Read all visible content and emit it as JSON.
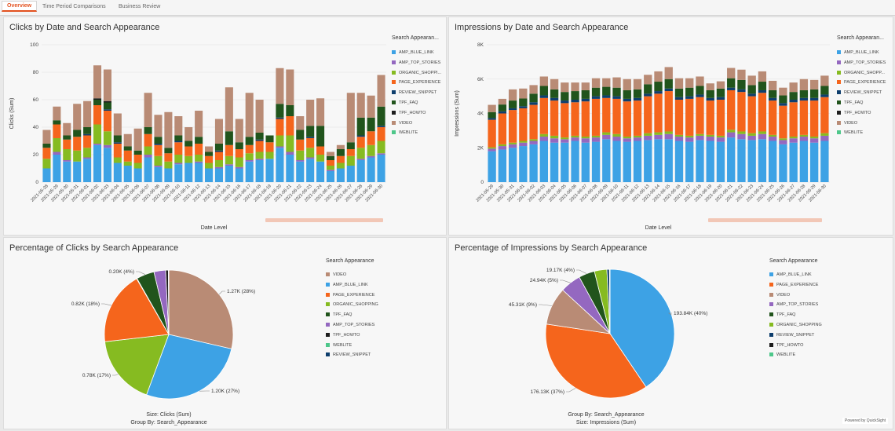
{
  "tabs": [
    "Overview",
    "Time Period Comparisons",
    "Business Review"
  ],
  "colors": {
    "AMP_BLUE_LINK": "#3da2e5",
    "AMP_TOP_STORIES": "#9468c0",
    "ORGANIC_SHOPPING": "#86bb21",
    "PAGE_EXPERIENCE": "#f5651c",
    "REVIEW_SNIPPET": "#0e3e6d",
    "TPF_FAQ": "#21541c",
    "TPF_HOWTO": "#1d1d1d",
    "VIDEO": "#b98b75",
    "WEBLITE": "#4ec78a"
  },
  "clicks_chart": {
    "title": "Clicks by Date and Search Appearance",
    "legend_title": "Search Appearan...",
    "legend": [
      "AMP_BLUE_LINK",
      "AMP_TOP_STORIES",
      "ORGANIC_SHOPPI...",
      "PAGE_EXPERIENCE",
      "REVIEW_SNIPPET",
      "TPF_FAQ",
      "TPF_HOWTO",
      "VIDEO",
      "WEBLITE"
    ]
  },
  "impr_chart": {
    "title": "Impressions by Date and Search Appearance",
    "legend_title": "Search Appearan...",
    "legend": [
      "AMP_BLUE_LINK",
      "AMP_TOP_STORIES",
      "ORGANIC_SHOPP...",
      "PAGE_EXPERIENCE",
      "REVIEW_SNIPPET",
      "TPF_FAQ",
      "TPF_HOWTO",
      "VIDEO",
      "WEBLITE"
    ]
  },
  "pie1": {
    "title": "Percentage of Clicks by Search Appearance",
    "legend_title": "Search Appearance",
    "legend": [
      "VIDEO",
      "AMP_BLUE_LINK",
      "PAGE_EXPERIENCE",
      "ORGANIC_SHOPPING",
      "TPF_FAQ",
      "AMP_TOP_STORIES",
      "TPF_HOWTO",
      "WEBLITE",
      "REVIEW_SNIPPET"
    ],
    "footer1": "Size: Clicks (Sum)",
    "footer2": "Group By: Search_Appearance"
  },
  "pie2": {
    "title": "Percentage of Impressions by Search Appearance",
    "legend_title": "Search Appearance",
    "legend": [
      "AMP_BLUE_LINK",
      "PAGE_EXPERIENCE",
      "VIDEO",
      "AMP_TOP_STORIES",
      "TPF_FAQ",
      "ORGANIC_SHOPPING",
      "REVIEW_SNIPPET",
      "TPF_HOWTO",
      "WEBLITE"
    ],
    "footer1": "Group By: Search_Appearance",
    "footer2": "Size: Impressions (Sum)"
  },
  "powered": "Powered by QuickSight",
  "chart_data": [
    {
      "type": "bar",
      "stacked": true,
      "title": "Clicks by Date and Search Appearance",
      "xlabel": "Date Level",
      "ylabel": "Clicks (Sum)",
      "ylim": [
        0,
        100
      ],
      "yticks": [
        0,
        20,
        40,
        60,
        80,
        100
      ],
      "categories": [
        "2021-05-28",
        "2021-05-29",
        "2021-05-30",
        "2021-05-31",
        "2021-06-01",
        "2021-06-02",
        "2021-06-03",
        "2021-06-04",
        "2021-06-05",
        "2021-06-06",
        "2021-06-07",
        "2021-06-08",
        "2021-06-09",
        "2021-06-10",
        "2021-06-11",
        "2021-06-12",
        "2021-06-13",
        "2021-06-14",
        "2021-06-15",
        "2021-06-16",
        "2021-06-17",
        "2021-06-18",
        "2021-06-19",
        "2021-06-20",
        "2021-06-21",
        "2021-06-22",
        "2021-06-23",
        "2021-06-24",
        "2021-06-25",
        "2021-06-26",
        "2021-06-27",
        "2021-06-28",
        "2021-06-29",
        "2021-06-30"
      ],
      "series": [
        {
          "name": "AMP_BLUE_LINK",
          "values": [
            10,
            20,
            15,
            15,
            17,
            27,
            25,
            14,
            12,
            10,
            18,
            11,
            10,
            13,
            14,
            14,
            10,
            10,
            12,
            10,
            15,
            16,
            17,
            25,
            20,
            15,
            17,
            15,
            8,
            10,
            12,
            16,
            18,
            20
          ]
        },
        {
          "name": "AMP_TOP_STORIES",
          "values": [
            0,
            2,
            1,
            0,
            1,
            1,
            2,
            0,
            0,
            0,
            2,
            1,
            0,
            1,
            0,
            1,
            0,
            1,
            1,
            1,
            1,
            1,
            0,
            1,
            2,
            1,
            1,
            0,
            1,
            0,
            0,
            1,
            1,
            1
          ]
        },
        {
          "name": "ORGANIC_SHOPPING",
          "values": [
            7,
            10,
            8,
            8,
            7,
            14,
            10,
            4,
            3,
            4,
            6,
            7,
            5,
            6,
            5,
            5,
            4,
            5,
            6,
            7,
            5,
            5,
            5,
            8,
            12,
            7,
            7,
            5,
            3,
            4,
            7,
            8,
            8,
            9
          ]
        },
        {
          "name": "PAGE_EXPERIENCE",
          "values": [
            8,
            10,
            7,
            10,
            9,
            14,
            15,
            10,
            8,
            6,
            9,
            8,
            6,
            9,
            7,
            8,
            5,
            6,
            8,
            6,
            6,
            8,
            7,
            12,
            14,
            8,
            7,
            6,
            4,
            5,
            5,
            8,
            10,
            10
          ]
        },
        {
          "name": "REVIEW_SNIPPET",
          "values": [
            0,
            0,
            0,
            0,
            1,
            0,
            1,
            1,
            0,
            0,
            0,
            1,
            0,
            1,
            0,
            0,
            0,
            1,
            0,
            0,
            0,
            1,
            0,
            1,
            0,
            0,
            1,
            0,
            0,
            0,
            0,
            1,
            0,
            1
          ]
        },
        {
          "name": "TPF_FAQ",
          "values": [
            3,
            3,
            3,
            5,
            5,
            4,
            5,
            5,
            3,
            3,
            5,
            5,
            4,
            4,
            4,
            5,
            3,
            5,
            10,
            5,
            6,
            5,
            5,
            10,
            8,
            7,
            8,
            15,
            3,
            5,
            5,
            13,
            10,
            14
          ]
        },
        {
          "name": "TPF_HOWTO",
          "values": [
            0,
            0,
            0,
            0,
            0,
            1,
            1,
            0,
            0,
            0,
            0,
            0,
            0,
            0,
            0,
            0,
            0,
            0,
            0,
            0,
            0,
            0,
            0,
            0,
            0,
            0,
            0,
            0,
            0,
            0,
            0,
            0,
            0,
            0
          ]
        },
        {
          "name": "VIDEO",
          "values": [
            10,
            10,
            9,
            19,
            19,
            24,
            23,
            16,
            9,
            16,
            25,
            16,
            26,
            14,
            10,
            19,
            4,
            18,
            32,
            17,
            32,
            24,
            0,
            26,
            26,
            10,
            19,
            20,
            3,
            3,
            36,
            18,
            16,
            23
          ]
        },
        {
          "name": "WEBLITE",
          "values": [
            0,
            0,
            0,
            0,
            0,
            0,
            0,
            0,
            0,
            0,
            0,
            0,
            0,
            0,
            0,
            0,
            0,
            0,
            0,
            0,
            0,
            0,
            0,
            0,
            0,
            0,
            0,
            0,
            0,
            0,
            0,
            0,
            0,
            0
          ]
        }
      ],
      "legend": "right"
    },
    {
      "type": "bar",
      "stacked": true,
      "title": "Impressions by Date and Search Appearance",
      "xlabel": "Date Level",
      "ylabel": "Impressions (Sum)",
      "ylim": [
        0,
        8000
      ],
      "yticks": [
        0,
        2000,
        4000,
        6000,
        8000
      ],
      "ytick_labels": [
        "0",
        "2K",
        "4K",
        "6K",
        "8K"
      ],
      "categories": [
        "2021-05-29",
        "2021-05-30",
        "2021-05-31",
        "2021-06-01",
        "2021-06-02",
        "2021-06-03",
        "2021-06-04",
        "2021-06-05",
        "2021-06-06",
        "2021-06-07",
        "2021-06-08",
        "2021-06-09",
        "2021-06-10",
        "2021-06-11",
        "2021-06-12",
        "2021-06-13",
        "2021-06-14",
        "2021-06-15",
        "2021-06-16",
        "2021-06-17",
        "2021-06-18",
        "2021-06-19",
        "2021-06-20",
        "2021-06-21",
        "2021-06-22",
        "2021-06-23",
        "2021-06-24",
        "2021-06-25",
        "2021-06-26",
        "2021-06-27",
        "2021-06-28",
        "2021-06-29",
        "2021-06-30"
      ],
      "series": [
        {
          "name": "AMP_BLUE_LINK",
          "values": [
            1800,
            1900,
            2000,
            2100,
            2200,
            2400,
            2300,
            2300,
            2400,
            2300,
            2350,
            2500,
            2400,
            2350,
            2400,
            2450,
            2500,
            2500,
            2400,
            2350,
            2450,
            2400,
            2350,
            2600,
            2500,
            2450,
            2500,
            2400,
            2200,
            2300,
            2400,
            2300,
            2400
          ]
        },
        {
          "name": "AMP_TOP_STORIES",
          "values": [
            150,
            200,
            200,
            200,
            200,
            250,
            250,
            200,
            200,
            250,
            250,
            250,
            250,
            200,
            200,
            250,
            250,
            300,
            250,
            250,
            250,
            250,
            250,
            300,
            300,
            250,
            300,
            250,
            250,
            250,
            250,
            250,
            300
          ]
        },
        {
          "name": "ORGANIC_SHOPPING",
          "values": [
            80,
            100,
            100,
            100,
            100,
            150,
            150,
            100,
            100,
            100,
            100,
            150,
            150,
            100,
            100,
            150,
            150,
            150,
            100,
            100,
            100,
            100,
            100,
            150,
            150,
            150,
            150,
            100,
            100,
            100,
            100,
            100,
            150
          ]
        },
        {
          "name": "PAGE_EXPERIENCE",
          "values": [
            1600,
            1800,
            1900,
            1900,
            2000,
            2100,
            2050,
            2000,
            1950,
            2050,
            2150,
            2000,
            2050,
            2050,
            2050,
            2150,
            2250,
            2350,
            2050,
            2150,
            2150,
            2000,
            2100,
            2300,
            2300,
            2150,
            2250,
            2000,
            1900,
            2000,
            2000,
            2100,
            2100
          ]
        },
        {
          "name": "REVIEW_SNIPPET",
          "values": [
            100,
            120,
            100,
            120,
            150,
            150,
            150,
            150,
            150,
            150,
            150,
            150,
            150,
            150,
            150,
            150,
            150,
            150,
            150,
            150,
            150,
            150,
            150,
            150,
            150,
            150,
            150,
            150,
            150,
            150,
            150,
            150,
            150
          ]
        },
        {
          "name": "TPF_FAQ",
          "values": [
            350,
            400,
            450,
            450,
            500,
            550,
            500,
            500,
            500,
            500,
            500,
            500,
            500,
            500,
            500,
            550,
            550,
            550,
            500,
            500,
            500,
            450,
            500,
            550,
            550,
            500,
            500,
            450,
            450,
            450,
            450,
            500,
            500
          ]
        },
        {
          "name": "TPF_HOWTO",
          "values": [
            0,
            0,
            0,
            0,
            0,
            0,
            0,
            0,
            0,
            0,
            0,
            0,
            0,
            0,
            0,
            0,
            0,
            0,
            0,
            0,
            0,
            0,
            0,
            0,
            0,
            0,
            0,
            0,
            0,
            0,
            0,
            0,
            0
          ]
        },
        {
          "name": "VIDEO",
          "values": [
            420,
            330,
            650,
            580,
            500,
            550,
            600,
            550,
            500,
            450,
            550,
            500,
            600,
            650,
            600,
            550,
            600,
            700,
            600,
            550,
            550,
            400,
            420,
            600,
            600,
            550,
            600,
            550,
            450,
            550,
            650,
            550,
            600
          ]
        },
        {
          "name": "WEBLITE",
          "values": [
            0,
            0,
            0,
            0,
            0,
            0,
            0,
            0,
            0,
            0,
            0,
            0,
            0,
            0,
            0,
            0,
            0,
            0,
            0,
            0,
            0,
            0,
            0,
            0,
            0,
            0,
            0,
            0,
            0,
            0,
            0,
            0,
            0
          ]
        }
      ],
      "legend": "right"
    },
    {
      "type": "pie",
      "title": "Percentage of Clicks by Search Appearance",
      "slices": [
        {
          "name": "VIDEO",
          "value": 1270,
          "label": "1.27K (28%)"
        },
        {
          "name": "AMP_BLUE_LINK",
          "value": 1200,
          "label": "1.20K (27%)"
        },
        {
          "name": "PAGE_EXPERIENCE",
          "value": 820,
          "label": "0.82K (18%)"
        },
        {
          "name": "ORGANIC_SHOPPING",
          "value": 780,
          "label": "0.78K (17%)"
        },
        {
          "name": "TPF_FAQ",
          "value": 200,
          "label": "0.20K (4%)"
        },
        {
          "name": "AMP_TOP_STORIES",
          "value": 130,
          "label": ""
        },
        {
          "name": "TPF_HOWTO",
          "value": 30,
          "label": ""
        },
        {
          "name": "WEBLITE",
          "value": 5,
          "label": ""
        },
        {
          "name": "REVIEW_SNIPPET",
          "value": 5,
          "label": ""
        }
      ],
      "slice_order": [
        "AMP_BLUE_LINK",
        "AMP_TOP_STORIES",
        "ORGANIC_SHOPPING",
        "PAGE_EXPERIENCE",
        "REVIEW_SNIPPET",
        "TPF_FAQ"
      ],
      "legend": "right"
    },
    {
      "type": "pie",
      "title": "Percentage of Impressions by Search Appearance",
      "slices": [
        {
          "name": "AMP_BLUE_LINK",
          "value": 193840,
          "label": "193.84K (40%)"
        },
        {
          "name": "PAGE_EXPERIENCE",
          "value": 176130,
          "label": "176.13K (37%)"
        },
        {
          "name": "VIDEO",
          "value": 45310,
          "label": "45.31K (9%)"
        },
        {
          "name": "AMP_TOP_STORIES",
          "value": 24940,
          "label": "24.94K (5%)"
        },
        {
          "name": "TPF_FAQ",
          "value": 19170,
          "label": "19.17K (4%)"
        },
        {
          "name": "ORGANIC_SHOPPING",
          "value": 15000,
          "label": ""
        },
        {
          "name": "REVIEW_SNIPPET",
          "value": 3000,
          "label": ""
        },
        {
          "name": "TPF_HOWTO",
          "value": 500,
          "label": ""
        },
        {
          "name": "WEBLITE",
          "value": 200,
          "label": ""
        }
      ],
      "legend": "right"
    }
  ]
}
